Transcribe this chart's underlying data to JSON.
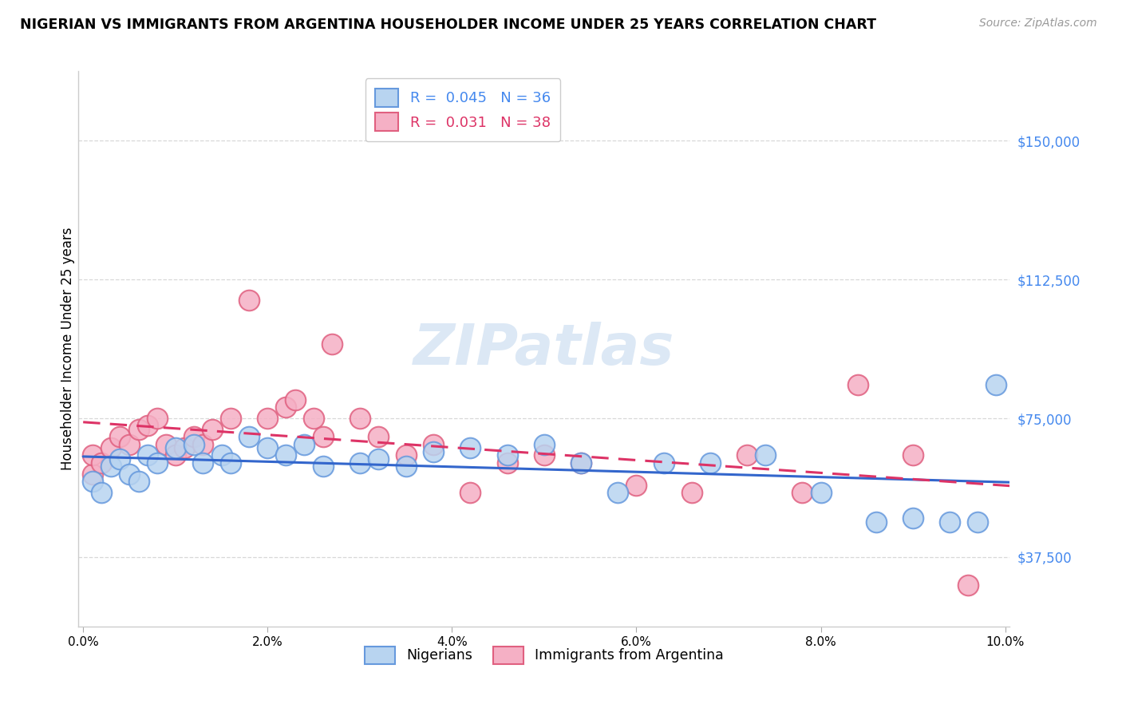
{
  "title": "NIGERIAN VS IMMIGRANTS FROM ARGENTINA HOUSEHOLDER INCOME UNDER 25 YEARS CORRELATION CHART",
  "source": "Source: ZipAtlas.com",
  "ylabel": "Householder Income Under 25 years",
  "ytick_values": [
    37500,
    75000,
    112500,
    150000
  ],
  "ytick_labels": [
    "$37,500",
    "$75,000",
    "$112,500",
    "$150,000"
  ],
  "ylim": [
    18750,
    168750
  ],
  "xlim": [
    -0.0005,
    0.1005
  ],
  "legend_blue_R": "0.045",
  "legend_blue_N": "36",
  "legend_pink_R": "0.031",
  "legend_pink_N": "38",
  "blue_fill": "#b8d4f0",
  "pink_fill": "#f5b0c5",
  "blue_edge": "#6699dd",
  "pink_edge": "#e06080",
  "blue_line": "#3366cc",
  "pink_line": "#dd3366",
  "watermark_color": "#dce8f5",
  "grid_color": "#d8d8d8",
  "nigerians_x": [
    0.001,
    0.002,
    0.003,
    0.004,
    0.005,
    0.006,
    0.007,
    0.008,
    0.01,
    0.012,
    0.013,
    0.015,
    0.016,
    0.018,
    0.02,
    0.022,
    0.024,
    0.026,
    0.03,
    0.032,
    0.035,
    0.038,
    0.042,
    0.046,
    0.05,
    0.054,
    0.058,
    0.063,
    0.068,
    0.074,
    0.08,
    0.086,
    0.09,
    0.094,
    0.097,
    0.099
  ],
  "nigerians_y": [
    58000,
    55000,
    62000,
    64000,
    60000,
    58000,
    65000,
    63000,
    67000,
    68000,
    63000,
    65000,
    63000,
    70000,
    67000,
    65000,
    68000,
    62000,
    63000,
    64000,
    62000,
    66000,
    67000,
    65000,
    68000,
    63000,
    55000,
    63000,
    63000,
    65000,
    55000,
    47000,
    48000,
    47000,
    47000,
    84000
  ],
  "argentina_x": [
    0.001,
    0.001,
    0.002,
    0.003,
    0.004,
    0.005,
    0.006,
    0.007,
    0.008,
    0.009,
    0.01,
    0.011,
    0.012,
    0.013,
    0.014,
    0.016,
    0.018,
    0.02,
    0.022,
    0.023,
    0.025,
    0.026,
    0.027,
    0.03,
    0.032,
    0.035,
    0.038,
    0.042,
    0.046,
    0.05,
    0.054,
    0.06,
    0.066,
    0.072,
    0.078,
    0.084,
    0.09,
    0.096
  ],
  "argentina_y": [
    60000,
    65000,
    63000,
    67000,
    70000,
    68000,
    72000,
    73000,
    75000,
    68000,
    65000,
    67000,
    70000,
    68000,
    72000,
    75000,
    107000,
    75000,
    78000,
    80000,
    75000,
    70000,
    95000,
    75000,
    70000,
    65000,
    68000,
    55000,
    63000,
    65000,
    63000,
    57000,
    55000,
    65000,
    55000,
    84000,
    65000,
    30000
  ]
}
